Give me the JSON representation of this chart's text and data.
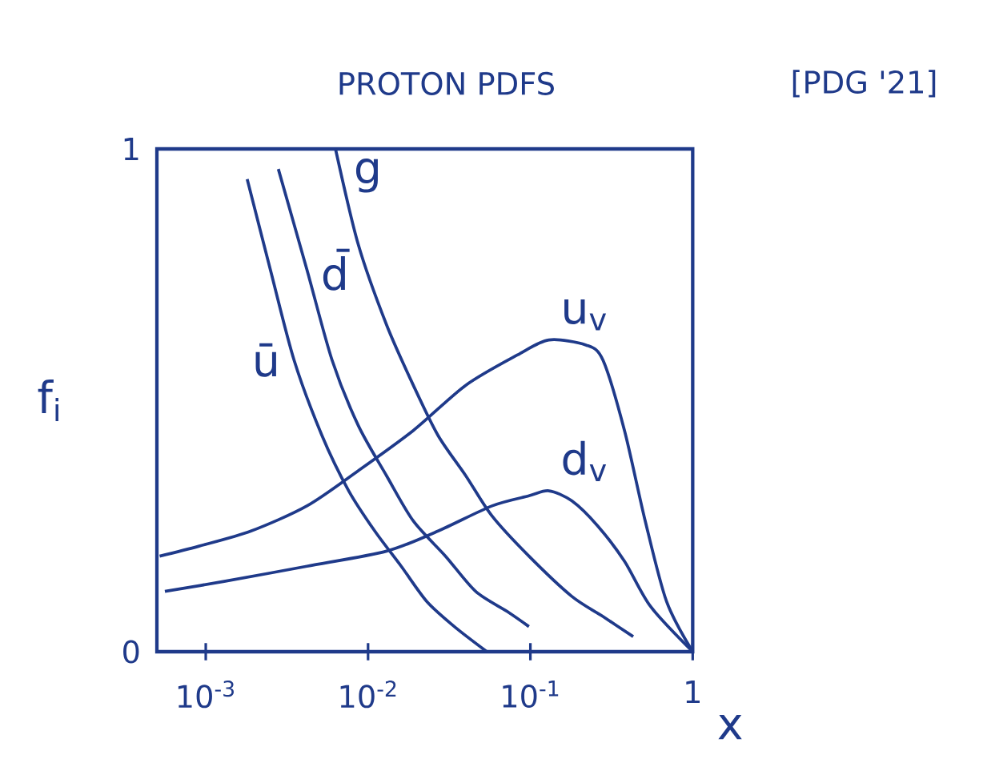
{
  "chart_data": {
    "type": "line",
    "title": "PROTON PDFS",
    "xlabel": "x",
    "ylabel": "f$_{i}$",
    "annotations": [
      "[PDG '21]"
    ],
    "log": "x",
    "xlim": [
      0.0005,
      1
    ],
    "ylim": [
      0,
      1
    ],
    "xticks": [
      {
        "value": 0.001,
        "label": "10$^{-3}$"
      },
      {
        "value": 0.01,
        "label": "10$^{-2}$"
      },
      {
        "value": 0.1,
        "label": "10$^{-1}$"
      },
      1
    ],
    "yticks": [
      0,
      1
    ],
    "marker": "none",
    "line_style": "solid",
    "series": [
      {
        "name": "u$_{v}$",
        "color": "#1f3a8a",
        "x": [
          0.00052,
          0.00091,
          0.0019,
          0.0042,
          0.0087,
          0.019,
          0.04,
          0.083,
          0.13,
          0.22,
          0.28,
          0.38,
          0.51,
          0.69,
          1
        ],
        "values": [
          0.19,
          0.21,
          0.24,
          0.29,
          0.36,
          0.44,
          0.53,
          0.59,
          0.62,
          0.61,
          0.58,
          0.44,
          0.26,
          0.1,
          0.0
        ]
      },
      {
        "name": "d$_{v}$",
        "color": "#1f3a8a",
        "x": [
          0.00056,
          0.0013,
          0.0042,
          0.013,
          0.027,
          0.058,
          0.098,
          0.13,
          0.18,
          0.26,
          0.38,
          0.55,
          1
        ],
        "values": [
          0.12,
          0.14,
          0.17,
          0.2,
          0.24,
          0.29,
          0.31,
          0.32,
          0.3,
          0.25,
          0.18,
          0.09,
          0.0
        ]
      },
      {
        "name": "ū",
        "color": "#1f3a8a",
        "x": [
          0.0018,
          0.0025,
          0.0035,
          0.0052,
          0.0076,
          0.011,
          0.016,
          0.023,
          0.034,
          0.054
        ],
        "values": [
          0.94,
          0.76,
          0.58,
          0.43,
          0.32,
          0.24,
          0.17,
          0.1,
          0.05,
          0.0
        ]
      },
      {
        "name": "d̄",
        "color": "#1f3a8a",
        "x": [
          0.0028,
          0.0042,
          0.006,
          0.0087,
          0.013,
          0.019,
          0.03,
          0.046,
          0.072,
          0.098
        ],
        "values": [
          0.96,
          0.76,
          0.58,
          0.45,
          0.35,
          0.26,
          0.19,
          0.12,
          0.08,
          0.05
        ]
      },
      {
        "name": "g",
        "color": "#1f3a8a",
        "x": [
          0.0063,
          0.0087,
          0.013,
          0.019,
          0.027,
          0.04,
          0.058,
          0.098,
          0.18,
          0.28,
          0.43
        ],
        "values": [
          1.0,
          0.81,
          0.65,
          0.53,
          0.43,
          0.35,
          0.27,
          0.19,
          0.11,
          0.07,
          0.03
        ]
      }
    ]
  }
}
